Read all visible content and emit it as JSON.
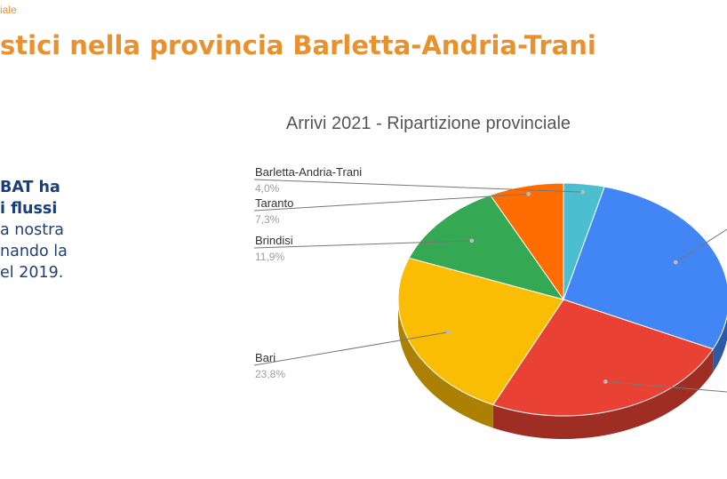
{
  "header": {
    "kicker": "iale",
    "title": "stici nella provincia Barletta-Andria-Trani"
  },
  "body_text": {
    "lines": [
      "BAT ha",
      "i flussi",
      "a nostra",
      "nando la",
      "el 2019."
    ]
  },
  "colors": {
    "accent_orange": "#e8912d",
    "text_blue": "#1f3f75"
  },
  "chart_data": {
    "type": "pie",
    "style": "3d",
    "title": "Arrivi 2021 - Ripartizione provinciale",
    "slices": [
      {
        "label": "Barletta-Andria-Trani",
        "value_label": "4,0%",
        "value": 4.0,
        "color": "#4bbecf"
      },
      {
        "label": "",
        "value_label": "",
        "value": 28.0,
        "color": "#4285f4"
      },
      {
        "label": "",
        "value_label": "",
        "value": 25.0,
        "color": "#e94235"
      },
      {
        "label": "Bari",
        "value_label": "23,8%",
        "value": 23.8,
        "color": "#fbbc04"
      },
      {
        "label": "Brindisi",
        "value_label": "11,9%",
        "value": 11.9,
        "color": "#34a853"
      },
      {
        "label": "Taranto",
        "value_label": "7,3%",
        "value": 7.3,
        "color": "#ff6d01"
      }
    ]
  }
}
